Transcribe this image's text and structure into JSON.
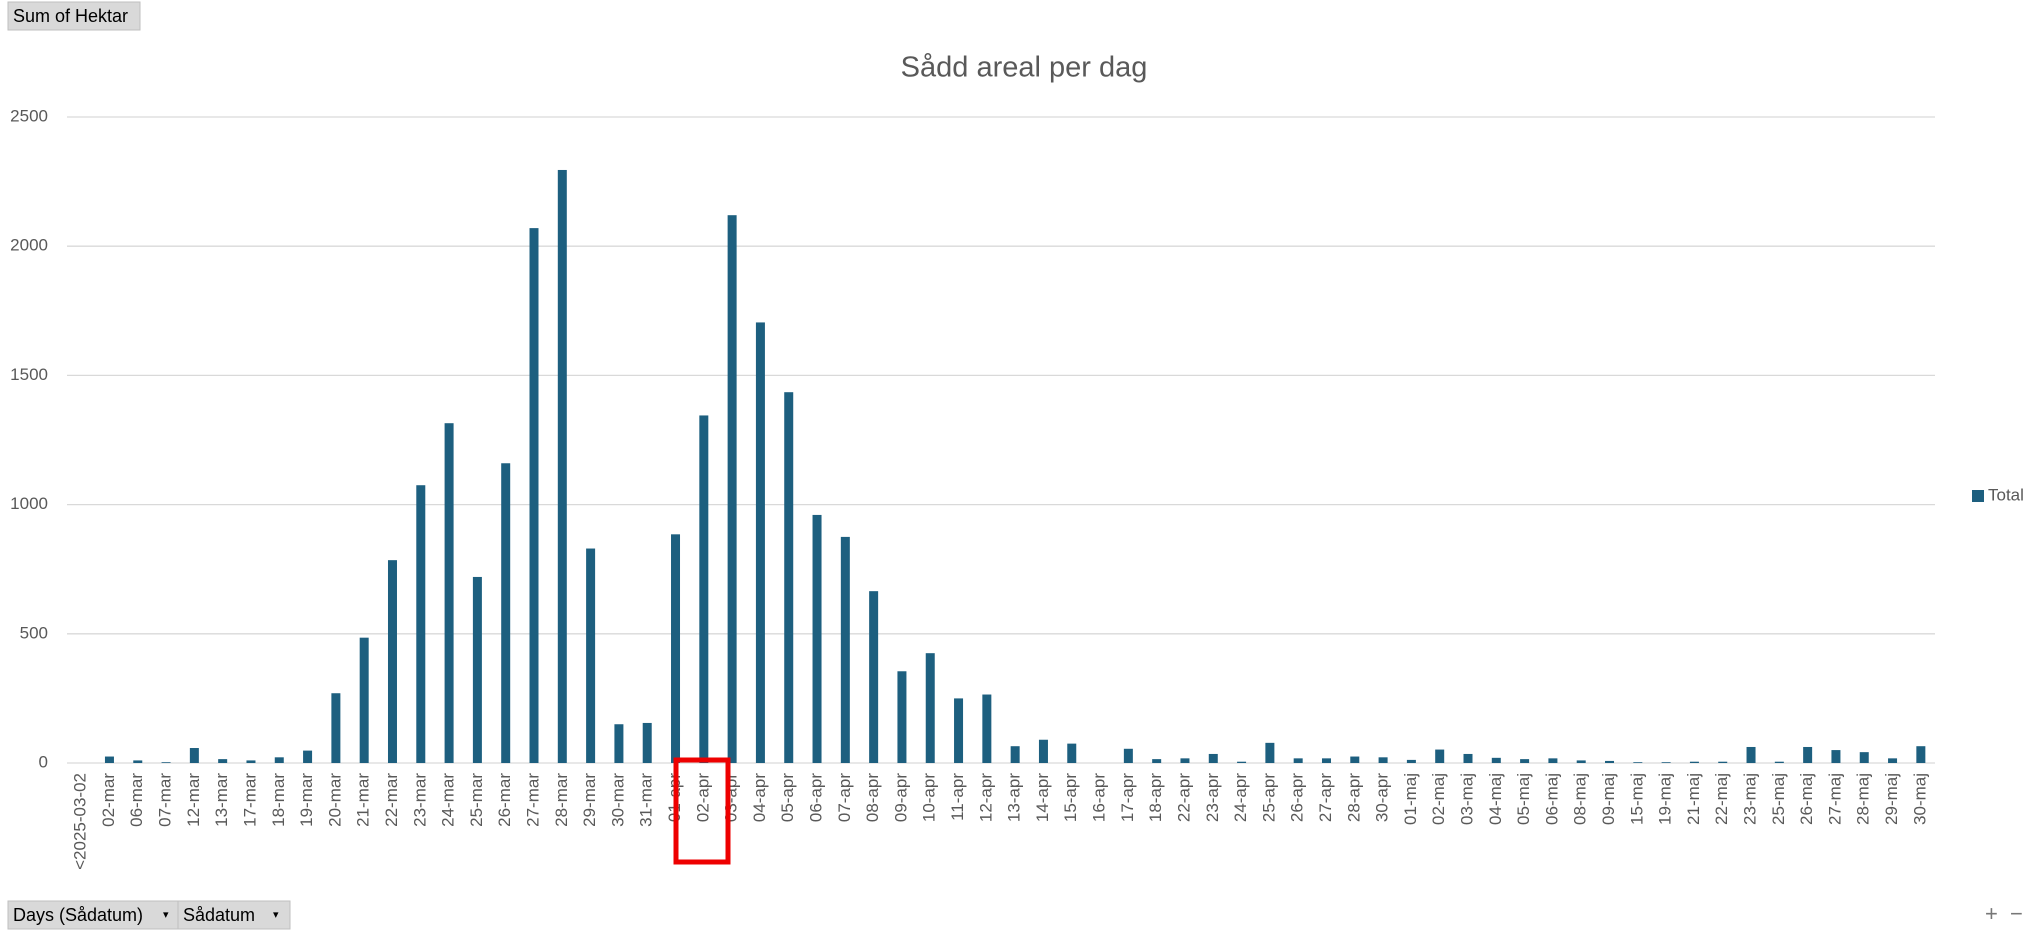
{
  "pivot_buttons": {
    "value_field": "Sum of Hektar",
    "axis_fields": [
      "Days (Sådatum)",
      "Sådatum"
    ]
  },
  "chart_data": {
    "type": "bar",
    "title": "Sådd areal per dag",
    "categories": [
      "<2025-03-02",
      "02-mar",
      "06-mar",
      "07-mar",
      "12-mar",
      "13-mar",
      "17-mar",
      "18-mar",
      "19-mar",
      "20-mar",
      "21-mar",
      "22-mar",
      "23-mar",
      "24-mar",
      "25-mar",
      "26-mar",
      "27-mar",
      "28-mar",
      "29-mar",
      "30-mar",
      "31-mar",
      "01-apr",
      "02-apr",
      "03-apr",
      "04-apr",
      "05-apr",
      "06-apr",
      "07-apr",
      "08-apr",
      "09-apr",
      "10-apr",
      "11-apr",
      "12-apr",
      "13-apr",
      "14-apr",
      "15-apr",
      "16-apr",
      "17-apr",
      "18-apr",
      "22-apr",
      "23-apr",
      "24-apr",
      "25-apr",
      "26-apr",
      "27-apr",
      "28-apr",
      "30-apr",
      "01-maj",
      "02-maj",
      "03-maj",
      "04-maj",
      "05-maj",
      "06-maj",
      "08-maj",
      "09-maj",
      "15-maj",
      "19-maj",
      "21-maj",
      "22-maj",
      "23-maj",
      "25-maj",
      "26-maj",
      "27-maj",
      "28-maj",
      "29-maj",
      "30-maj"
    ],
    "series": [
      {
        "name": "Total",
        "color": "#1d5f7f",
        "values": [
          0,
          25,
          10,
          3,
          58,
          15,
          10,
          22,
          48,
          270,
          485,
          785,
          1075,
          1315,
          720,
          1160,
          2070,
          2295,
          830,
          150,
          155,
          885,
          1345,
          2120,
          1705,
          1435,
          960,
          875,
          665,
          355,
          425,
          250,
          265,
          65,
          90,
          75,
          0,
          55,
          15,
          18,
          35,
          5,
          78,
          18,
          18,
          25,
          22,
          12,
          52,
          35,
          20,
          15,
          18,
          10,
          8,
          3,
          3,
          5,
          5,
          62,
          5,
          62,
          50,
          42,
          18,
          65
        ]
      }
    ],
    "ylim": [
      0,
      2500
    ],
    "yticks": [
      0,
      500,
      1000,
      1500,
      2000,
      2500
    ],
    "grid": true,
    "legend": "right"
  }
}
